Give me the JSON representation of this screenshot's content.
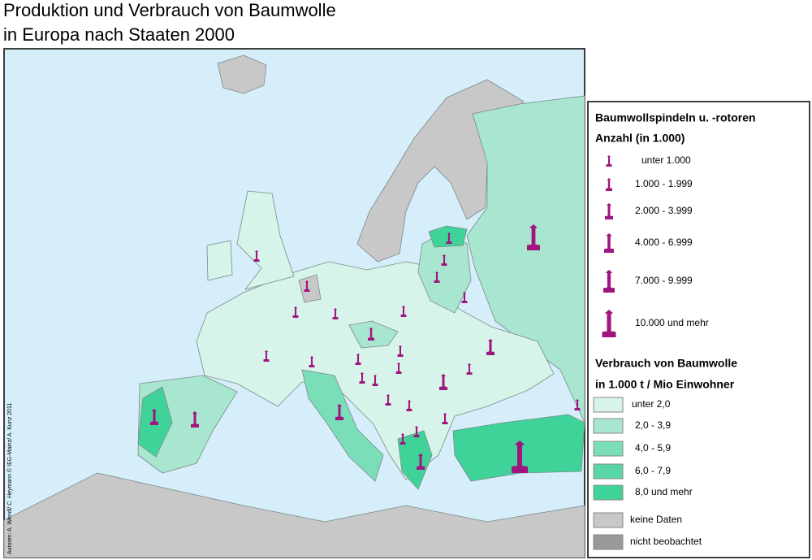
{
  "title": [
    "Produktion und Verbrauch von Baumwolle",
    "in Europa nach Staaten 2000"
  ],
  "credit": "Autoren: A. Wendl/ C. Heymann © IEG-Mainz/ A. Kunz 2011",
  "legend": {
    "spindles": {
      "title": "Baumwollspindeln u. -rotoren",
      "subtitle": "Anzahl (in 1.000)",
      "items": [
        "unter  1.000",
        "1.000 - 1.999",
        "2.000 - 3.999",
        "4.000 - 6.999",
        "7.000 - 9.999",
        "10.000 und mehr"
      ]
    },
    "consumption": {
      "title": "Verbrauch von Baumwolle",
      "subtitle": "in 1.000 t / Mio Einwohner",
      "items": [
        "unter 2,0",
        "2,0 - 3,9",
        "4,0 - 5,9",
        "6,0 - 7,9",
        "8,0 und mehr"
      ]
    },
    "other": [
      "keine Daten",
      "nicht beobachtet"
    ]
  }
}
